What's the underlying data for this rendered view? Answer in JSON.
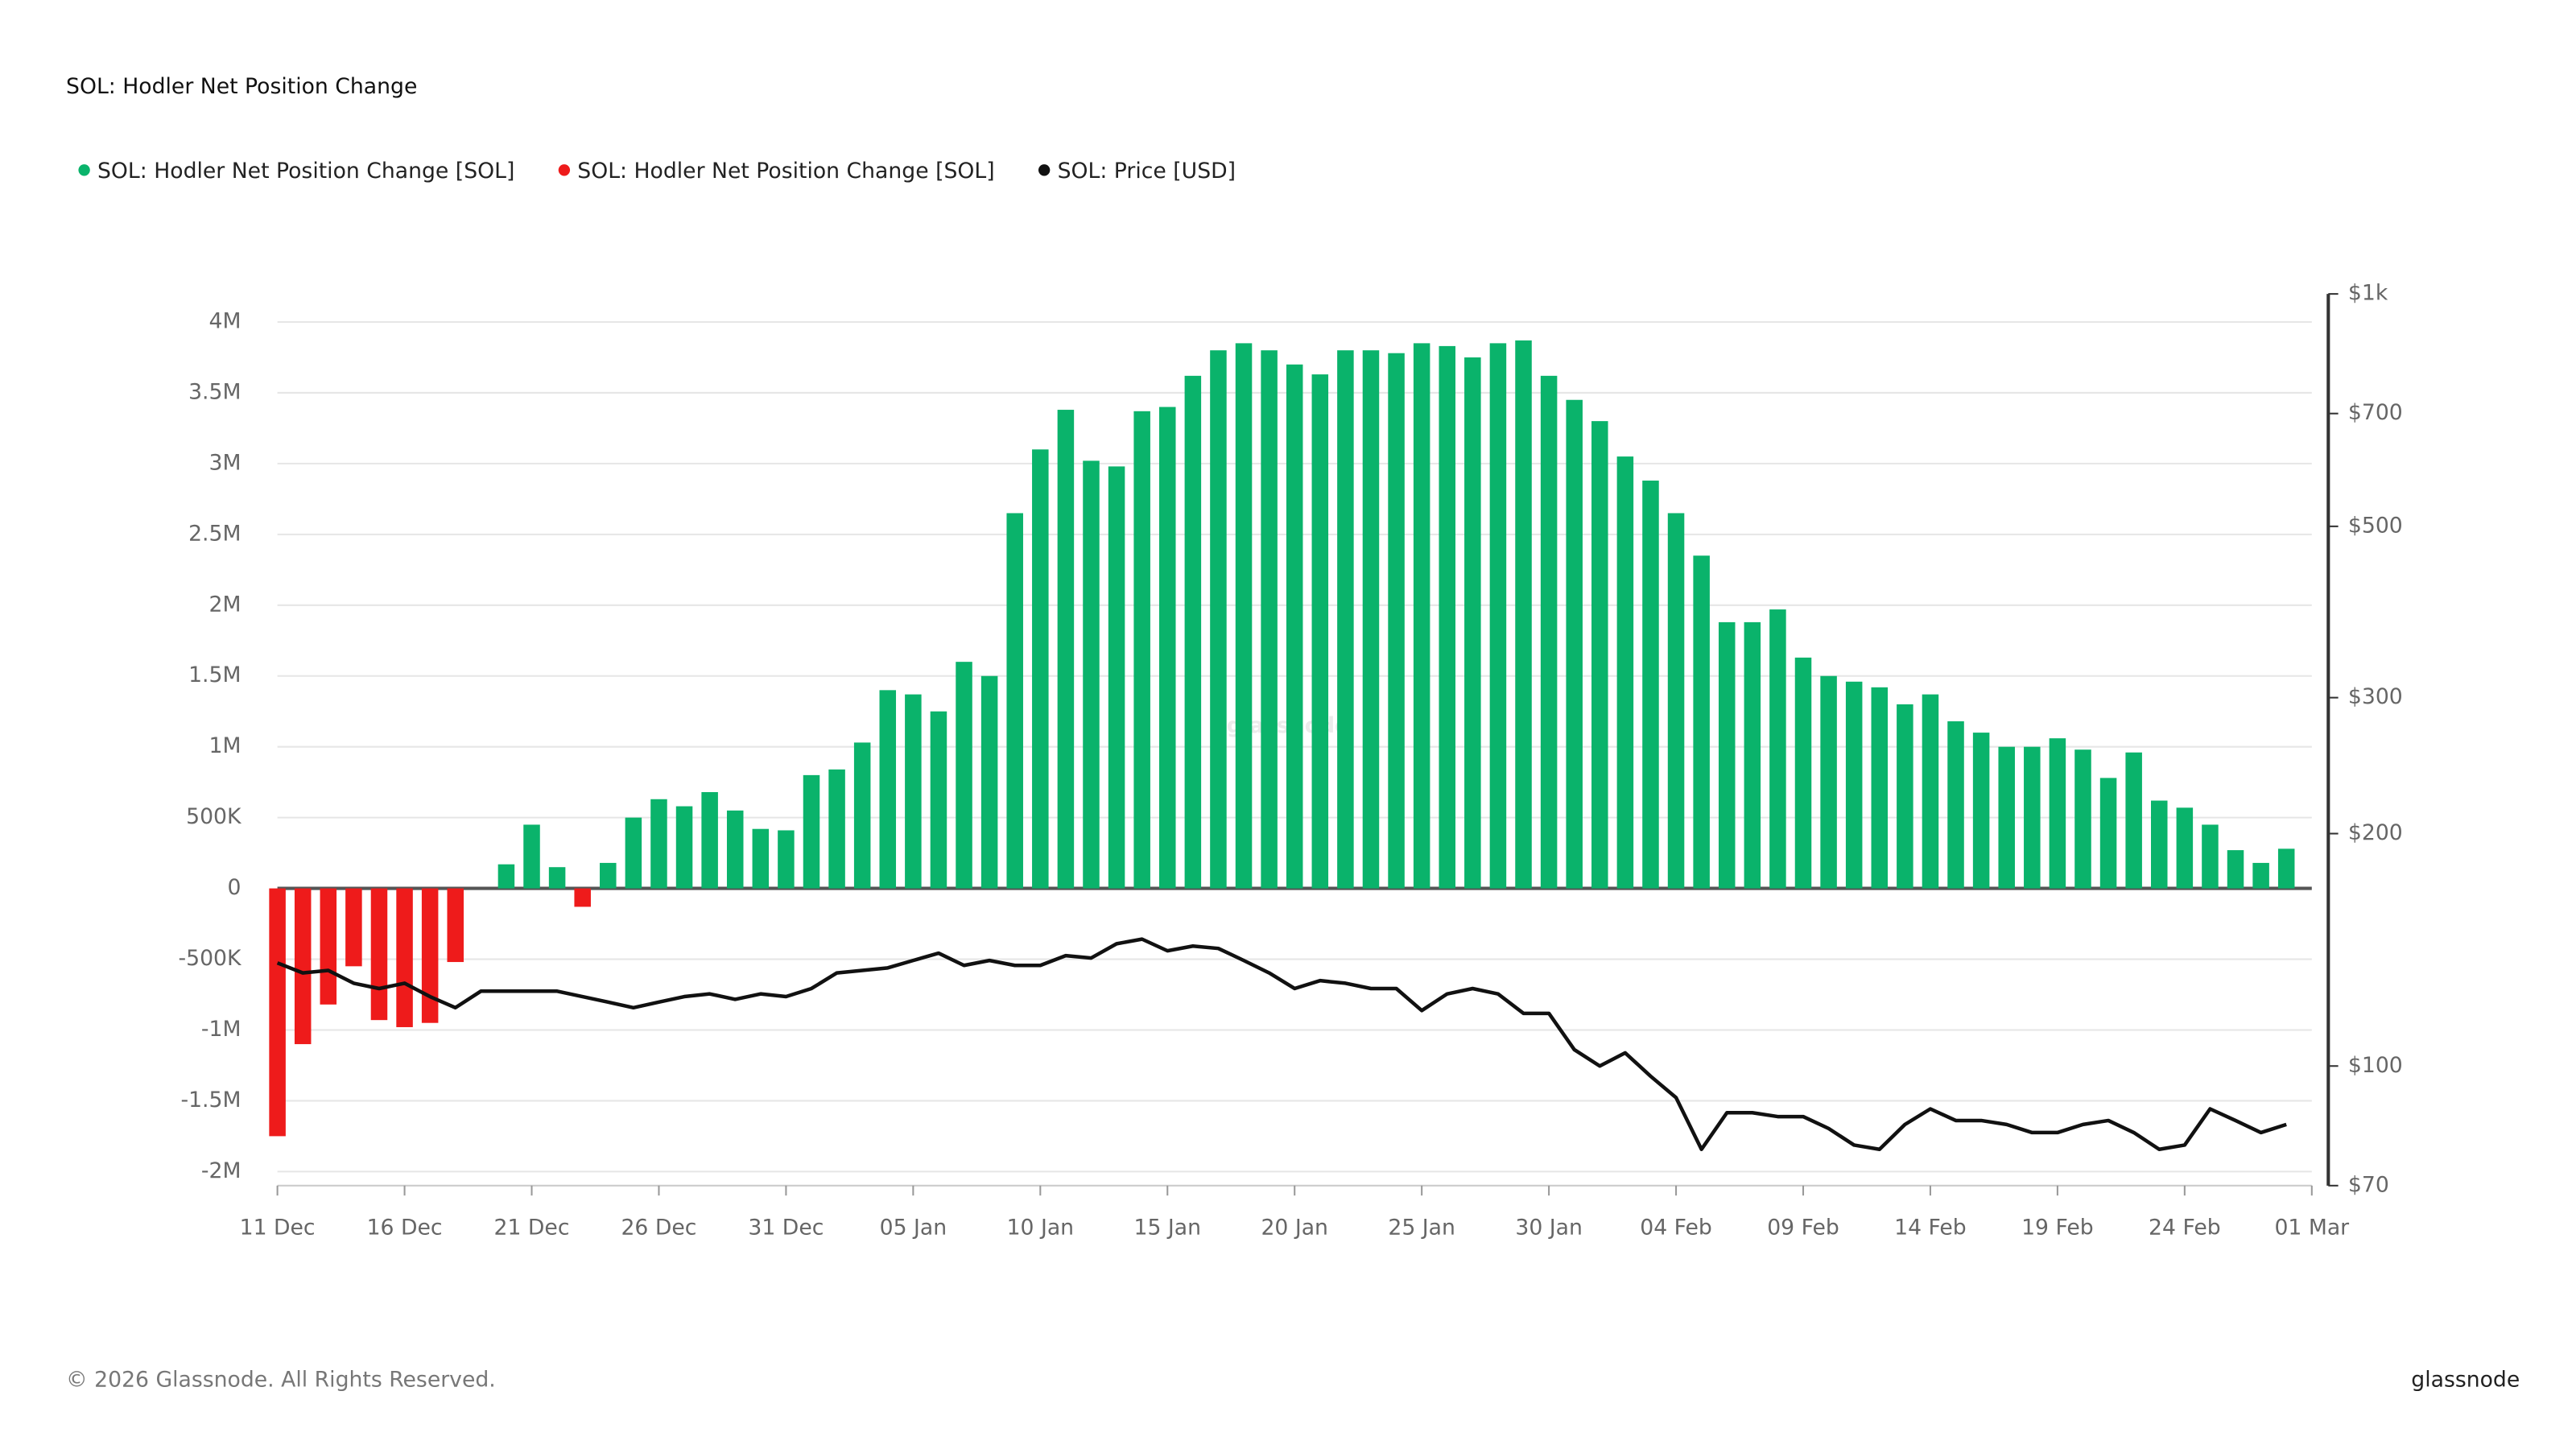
{
  "chart_data": {
    "type": "bar",
    "title": "SOL: Hodler Net Position Change",
    "watermark": "glassnode",
    "footer": "© 2026 Glassnode. All Rights Reserved.",
    "brand": "glassnode",
    "xlim": [
      0,
      80
    ],
    "xticks": [
      {
        "value": 0,
        "label": "11 Dec"
      },
      {
        "value": 5,
        "label": "16 Dec"
      },
      {
        "value": 10,
        "label": "21 Dec"
      },
      {
        "value": 15,
        "label": "26 Dec"
      },
      {
        "value": 20,
        "label": "31 Dec"
      },
      {
        "value": 25,
        "label": "05 Jan"
      },
      {
        "value": 30,
        "label": "10 Jan"
      },
      {
        "value": 35,
        "label": "15 Jan"
      },
      {
        "value": 40,
        "label": "20 Jan"
      },
      {
        "value": 45,
        "label": "25 Jan"
      },
      {
        "value": 50,
        "label": "30 Jan"
      },
      {
        "value": 55,
        "label": "04 Feb"
      },
      {
        "value": 60,
        "label": "09 Feb"
      },
      {
        "value": 65,
        "label": "14 Feb"
      },
      {
        "value": 70,
        "label": "19 Feb"
      },
      {
        "value": 75,
        "label": "24 Feb"
      },
      {
        "value": 80,
        "label": "01 Mar"
      }
    ],
    "ylim": [
      -2000000,
      4000000
    ],
    "yticks": [
      {
        "value": -2000000,
        "label": "-2M"
      },
      {
        "value": -1500000,
        "label": "-1.5M"
      },
      {
        "value": -1000000,
        "label": "-1M"
      },
      {
        "value": -500000,
        "label": "-500K"
      },
      0,
      {
        "value": 500000,
        "label": "500K"
      },
      {
        "value": 1000000,
        "label": "1M"
      },
      {
        "value": 1500000,
        "label": "1.5M"
      },
      {
        "value": 2000000,
        "label": "2M"
      },
      {
        "value": 2500000,
        "label": "2.5M"
      },
      {
        "value": 3000000,
        "label": "3M"
      },
      {
        "value": 3500000,
        "label": "3.5M"
      },
      {
        "value": 4000000,
        "label": "4M"
      }
    ],
    "y2lim": [
      70,
      1000
    ],
    "y2log": true,
    "y2ticks": [
      {
        "value": 70,
        "label": "$70"
      },
      {
        "value": 100,
        "label": "$100"
      },
      {
        "value": 200,
        "label": "$200"
      },
      {
        "value": 300,
        "label": "$300"
      },
      {
        "value": 500,
        "label": "$500"
      },
      {
        "value": 700,
        "label": "$700"
      },
      {
        "value": 1000,
        "label": "$1k"
      }
    ],
    "grid": true,
    "series": [
      {
        "name": "SOL: Hodler Net Position Change [SOL]",
        "color": "#0ab36b",
        "type": "bar",
        "values": [
          null,
          null,
          null,
          null,
          null,
          null,
          null,
          null,
          null,
          170000,
          450000,
          150000,
          null,
          180000,
          500000,
          630000,
          580000,
          680000,
          550000,
          420000,
          410000,
          800000,
          840000,
          1030000,
          1400000,
          1370000,
          1250000,
          1600000,
          1500000,
          2650000,
          3100000,
          3380000,
          3020000,
          2980000,
          3370000,
          3400000,
          3620000,
          3800000,
          3850000,
          3800000,
          3700000,
          3630000,
          3800000,
          3800000,
          3780000,
          3850000,
          3830000,
          3750000,
          3850000,
          3870000,
          3620000,
          3450000,
          3300000,
          3050000,
          2880000,
          2650000,
          2350000,
          1880000,
          1880000,
          1970000,
          1630000,
          1500000,
          1460000,
          1420000,
          1300000,
          1370000,
          1180000,
          1100000,
          1000000,
          1000000,
          1060000,
          980000,
          780000,
          960000,
          620000,
          570000,
          450000,
          270000,
          180000,
          280000
        ]
      },
      {
        "name": "SOL: Hodler Net Position Change [SOL]",
        "color": "#ee1b1b",
        "type": "bar",
        "values": [
          -1750000,
          -1100000,
          -820000,
          -550000,
          -930000,
          -980000,
          -950000,
          -520000,
          null,
          null,
          null,
          null,
          -130000,
          null,
          null,
          null,
          null,
          null,
          null,
          null,
          null,
          null,
          null,
          null,
          null,
          null,
          null,
          null,
          null,
          null,
          null,
          null,
          null,
          null,
          null,
          null,
          null,
          null,
          null,
          null,
          null,
          null,
          null,
          null,
          null,
          null,
          null,
          null,
          null,
          null,
          null,
          null,
          null,
          null,
          null,
          null,
          null,
          null,
          null,
          null,
          null,
          null,
          null,
          null,
          null,
          null,
          null,
          null,
          null,
          null,
          null,
          null,
          null,
          null,
          null,
          null,
          null,
          null,
          null,
          null
        ]
      },
      {
        "name": "SOL: Price [USD]",
        "color": "#111111",
        "type": "line",
        "axis": "y2",
        "values": [
          136,
          132,
          133,
          128,
          126,
          128,
          123,
          119,
          125,
          125,
          125,
          125,
          123,
          121,
          119,
          121,
          123,
          124,
          122,
          124,
          123,
          126,
          132,
          133,
          134,
          137,
          140,
          135,
          137,
          135,
          135,
          139,
          138,
          144,
          146,
          141,
          143,
          142,
          137,
          132,
          126,
          129,
          128,
          126,
          126,
          118,
          124,
          126,
          124,
          117,
          117,
          105,
          100,
          104,
          97,
          91,
          78,
          87,
          87,
          86,
          86,
          83,
          79,
          78,
          84,
          88,
          85,
          85,
          84,
          82,
          82,
          84,
          85,
          82,
          78,
          79,
          88,
          85,
          82,
          84
        ]
      }
    ]
  }
}
